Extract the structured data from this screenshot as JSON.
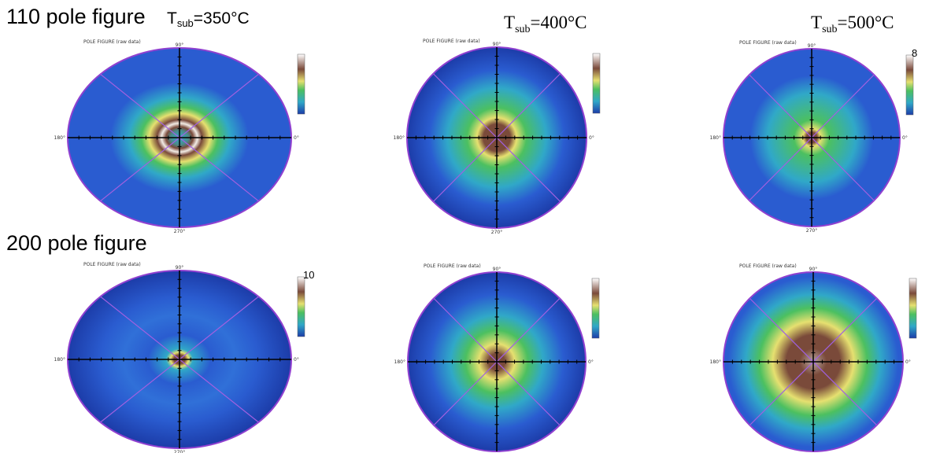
{
  "row_titles": [
    "110 pole figure",
    "200 pole figure"
  ],
  "conditions": [
    {
      "main": "T",
      "sub": "sub",
      "rest": "=350°C"
    },
    {
      "main": "T",
      "sub": "sub",
      "rest": "=400°C"
    },
    {
      "main": "T",
      "sub": "sub",
      "rest": "=500°C"
    }
  ],
  "panels": [
    {
      "header": "POLE FIGURE (raw data)",
      "top": "90°",
      "left": "180°",
      "right": "0°",
      "bottom": "270°"
    },
    {
      "header": "POLE FIGURE (raw data)",
      "top": "90°",
      "left": "180°",
      "right": "0°",
      "bottom": "270°"
    },
    {
      "header": "POLE FIGURE (raw data)",
      "top": "90°",
      "left": "180°",
      "right": "0°",
      "bottom": "270°",
      "colorbar_max": "8"
    },
    {
      "header": "POLE FIGURE (raw data)",
      "top": "90°",
      "left": "180°",
      "right": "0°",
      "bottom": "270°",
      "colorbar_max": "10"
    },
    {
      "header": "POLE FIGURE (raw data)",
      "top": "90°",
      "left": "180°",
      "right": "0°",
      "bottom": "270°"
    },
    {
      "header": "POLE FIGURE (raw data)",
      "top": "90°",
      "left": "180°",
      "right": "0°",
      "bottom": "270°"
    }
  ]
}
